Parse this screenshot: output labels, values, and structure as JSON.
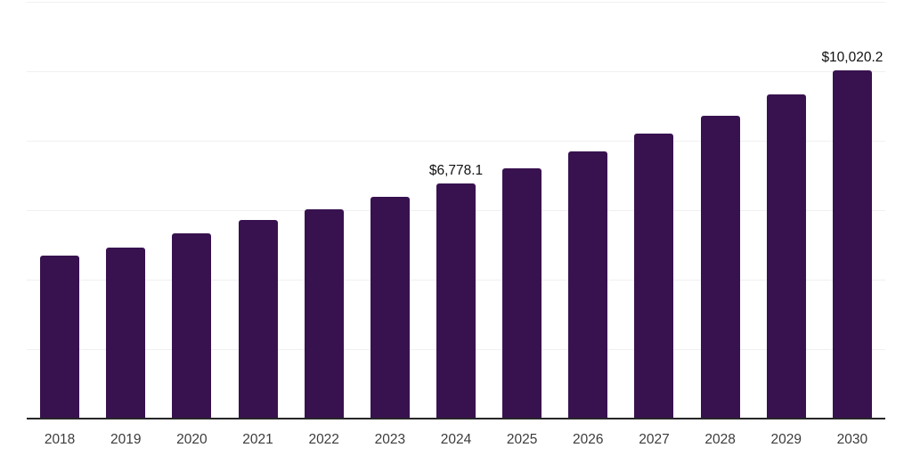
{
  "chart_data": {
    "type": "bar",
    "title": "",
    "categories": [
      "2018",
      "2019",
      "2020",
      "2021",
      "2022",
      "2023",
      "2024",
      "2025",
      "2026",
      "2027",
      "2028",
      "2029",
      "2030"
    ],
    "values": [
      4700,
      4930,
      5340,
      5720,
      6030,
      6390,
      6778.1,
      7210,
      7680,
      8210,
      8720,
      9330,
      10020.2
    ],
    "data_labels": [
      "",
      "",
      "",
      "",
      "",
      "",
      "$6,778.1",
      "",
      "",
      "",
      "",
      "",
      "$10,020.2"
    ],
    "xlabel": "",
    "ylabel": "",
    "ylim": [
      0,
      12000
    ],
    "gridline_step": 2000,
    "grid": "horizontal-only",
    "legend": "none",
    "y_axis_labels_visible": false,
    "colors": {
      "bar": "#38124f",
      "gridline": "#f0f0f0",
      "axis_line": "#262626",
      "tick_label": "#3c3c3c",
      "data_label": "#111111",
      "background": "#ffffff"
    }
  }
}
